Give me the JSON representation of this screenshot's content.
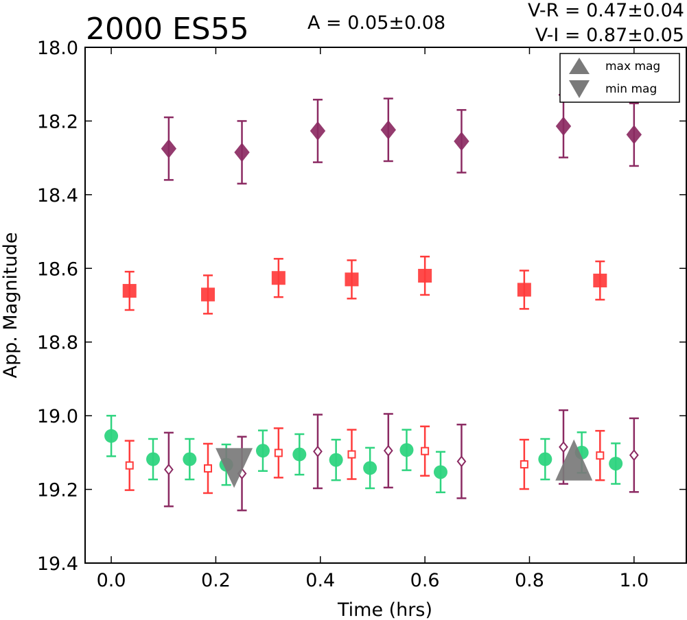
{
  "chart_data": {
    "type": "scatter",
    "title": "2000 ES55",
    "annotations": {
      "amplitude": "A  = 0.05±0.08",
      "v_r": "V-R = 0.47±0.04",
      "v_i": "V-I  = 0.87±0.05"
    },
    "xlabel": "Time (hrs)",
    "ylabel": "App. Magnitude",
    "xlim": [
      -0.05,
      1.1
    ],
    "ylim": [
      19.4,
      18.0
    ],
    "y_inverted": true,
    "grid": false,
    "legend_position": "top-right",
    "xticks": [
      "0.0",
      "0.2",
      "0.4",
      "0.6",
      "0.8",
      "1.0"
    ],
    "yticks": [
      "18.0",
      "18.2",
      "18.4",
      "18.6",
      "18.8",
      "19.0",
      "19.2",
      "19.4"
    ],
    "legend": [
      {
        "label": "max mag",
        "marker": "triangle-up"
      },
      {
        "label": "min mag",
        "marker": "triangle-down"
      }
    ],
    "series": [
      {
        "marker": "diamond",
        "filled": true,
        "color": "#8b2a62",
        "points": [
          {
            "x": 0.11,
            "y": 18.275,
            "err": 0.085
          },
          {
            "x": 0.25,
            "y": 18.285,
            "err": 0.085
          },
          {
            "x": 0.395,
            "y": 18.227,
            "err": 0.085
          },
          {
            "x": 0.53,
            "y": 18.224,
            "err": 0.085
          },
          {
            "x": 0.67,
            "y": 18.255,
            "err": 0.085
          },
          {
            "x": 0.865,
            "y": 18.214,
            "err": 0.085
          },
          {
            "x": 1.0,
            "y": 18.237,
            "err": 0.085
          }
        ]
      },
      {
        "marker": "square",
        "filled": true,
        "color": "#ff3b3b",
        "points": [
          {
            "x": 0.035,
            "y": 18.661,
            "err": 0.052
          },
          {
            "x": 0.185,
            "y": 18.671,
            "err": 0.052
          },
          {
            "x": 0.32,
            "y": 18.626,
            "err": 0.052
          },
          {
            "x": 0.46,
            "y": 18.63,
            "err": 0.052
          },
          {
            "x": 0.6,
            "y": 18.62,
            "err": 0.052
          },
          {
            "x": 0.79,
            "y": 18.658,
            "err": 0.052
          },
          {
            "x": 0.935,
            "y": 18.633,
            "err": 0.052
          }
        ]
      },
      {
        "marker": "circle",
        "filled": true,
        "color": "#2ed47f",
        "points": [
          {
            "x": 0.0,
            "y": 19.055,
            "err": 0.055
          },
          {
            "x": 0.08,
            "y": 19.118,
            "err": 0.055
          },
          {
            "x": 0.15,
            "y": 19.118,
            "err": 0.055
          },
          {
            "x": 0.22,
            "y": 19.133,
            "err": 0.055
          },
          {
            "x": 0.29,
            "y": 19.095,
            "err": 0.055
          },
          {
            "x": 0.36,
            "y": 19.105,
            "err": 0.055
          },
          {
            "x": 0.43,
            "y": 19.12,
            "err": 0.055
          },
          {
            "x": 0.495,
            "y": 19.142,
            "err": 0.055
          },
          {
            "x": 0.565,
            "y": 19.093,
            "err": 0.055
          },
          {
            "x": 0.63,
            "y": 19.153,
            "err": 0.055
          },
          {
            "x": 0.83,
            "y": 19.118,
            "err": 0.055
          },
          {
            "x": 0.9,
            "y": 19.1,
            "err": 0.055
          },
          {
            "x": 0.965,
            "y": 19.13,
            "err": 0.055
          }
        ]
      },
      {
        "marker": "square",
        "filled": false,
        "color": "#ff3b3b",
        "points": [
          {
            "x": 0.035,
            "y": 19.135,
            "err": 0.067
          },
          {
            "x": 0.185,
            "y": 19.143,
            "err": 0.067
          },
          {
            "x": 0.32,
            "y": 19.101,
            "err": 0.067
          },
          {
            "x": 0.46,
            "y": 19.105,
            "err": 0.067
          },
          {
            "x": 0.6,
            "y": 19.096,
            "err": 0.067
          },
          {
            "x": 0.79,
            "y": 19.132,
            "err": 0.067
          },
          {
            "x": 0.935,
            "y": 19.108,
            "err": 0.067
          }
        ]
      },
      {
        "marker": "diamond",
        "filled": false,
        "color": "#8b2a62",
        "points": [
          {
            "x": 0.11,
            "y": 19.146,
            "err": 0.1
          },
          {
            "x": 0.25,
            "y": 19.157,
            "err": 0.1
          },
          {
            "x": 0.395,
            "y": 19.097,
            "err": 0.1
          },
          {
            "x": 0.53,
            "y": 19.095,
            "err": 0.1
          },
          {
            "x": 0.67,
            "y": 19.124,
            "err": 0.1
          },
          {
            "x": 0.865,
            "y": 19.085,
            "err": 0.1
          },
          {
            "x": 1.0,
            "y": 19.107,
            "err": 0.1
          }
        ]
      }
    ],
    "extrema": [
      {
        "label": "min mag",
        "marker": "triangle-down",
        "x": 0.235,
        "y": 19.14,
        "color": "#7a7a7a"
      },
      {
        "label": "max mag",
        "marker": "triangle-up",
        "x": 0.885,
        "y": 19.12,
        "color": "#7a7a7a"
      }
    ]
  }
}
